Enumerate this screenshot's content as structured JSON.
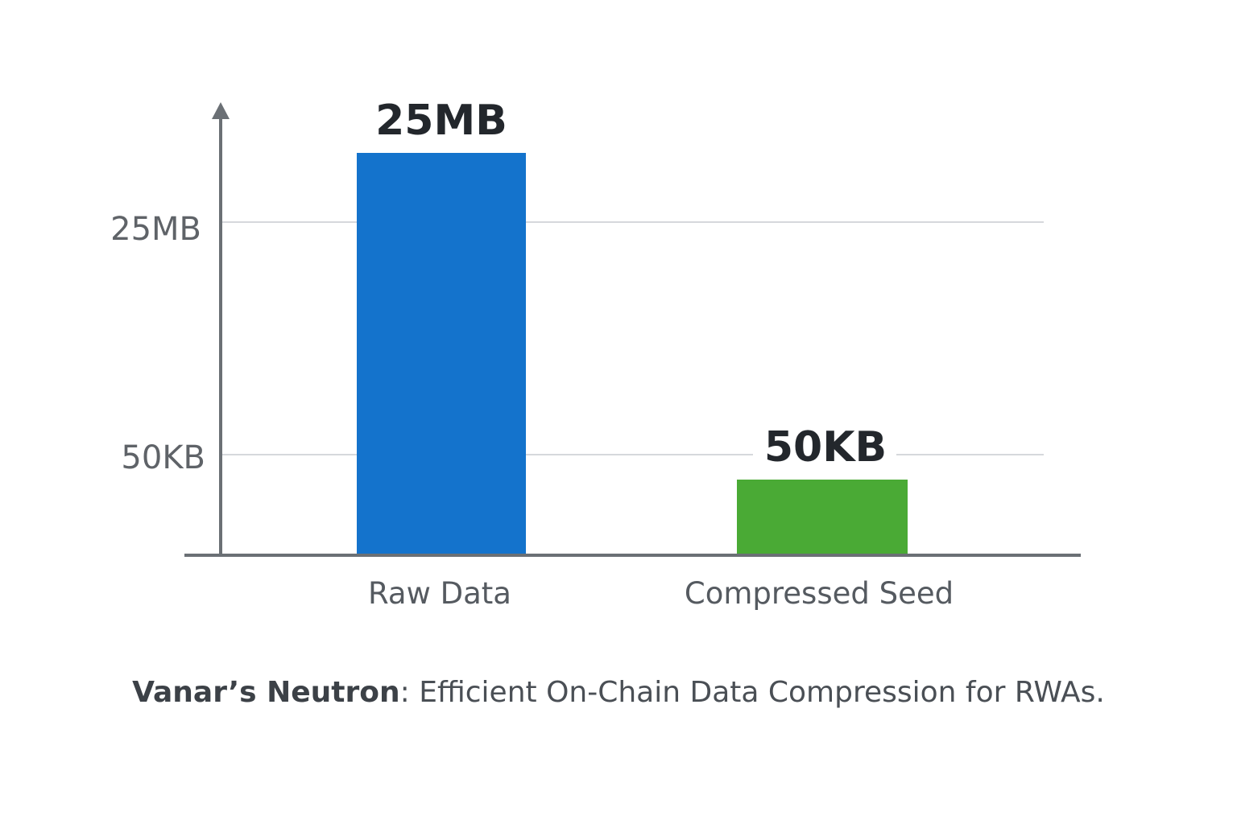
{
  "chart_data": {
    "type": "bar",
    "categories": [
      "Raw Data",
      "Compressed Seed"
    ],
    "values": [
      "25MB",
      "50KB"
    ],
    "y_ticks": [
      "50KB",
      "25MB"
    ],
    "colors": [
      "#1473cc",
      "#4aaa35"
    ],
    "grid": true,
    "caption_bold": "Vanar’s Neutron",
    "caption_rest": ": Efficient On-Chain Data Compression for RWAs."
  }
}
